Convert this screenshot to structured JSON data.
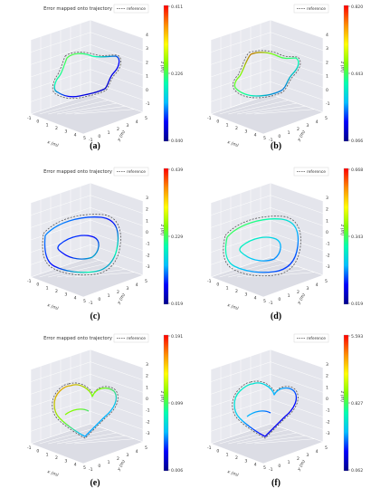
{
  "figure": {
    "panels": [
      {
        "caption": "(a)",
        "title": "Error mapped onto trajectory",
        "legend": "reference",
        "colorbar": {
          "max": "0.411",
          "mid": "0.226",
          "min": "0.040"
        },
        "x_ticks": [
          "-1",
          "0",
          "1",
          "2",
          "3",
          "4",
          "5"
        ],
        "y_ticks": [
          "-1",
          "0",
          "1",
          "2",
          "3",
          "4",
          "5"
        ],
        "z_ticks": [
          "-1",
          "0",
          "1",
          "2",
          "3",
          "4"
        ]
      },
      {
        "caption": "(b)",
        "title": "",
        "legend": "reference",
        "colorbar": {
          "max": "0.820",
          "mid": "0.443",
          "min": "0.066"
        },
        "x_ticks": [
          "-1",
          "0",
          "1",
          "2",
          "3",
          "4",
          "5"
        ],
        "y_ticks": [
          "-1",
          "0",
          "1",
          "2",
          "3",
          "4",
          "5"
        ],
        "z_ticks": [
          "-1",
          "0",
          "1",
          "2",
          "3",
          "4"
        ]
      },
      {
        "caption": "(c)",
        "title": "Error mapped onto trajectory",
        "legend": "reference",
        "colorbar": {
          "max": "0.439",
          "mid": "0.229",
          "min": "0.019"
        },
        "x_ticks": [
          "-1",
          "0",
          "1",
          "2",
          "3",
          "4",
          "5"
        ],
        "y_ticks": [
          "-1",
          "0",
          "1",
          "2",
          "3",
          "4",
          "5"
        ],
        "z_ticks": [
          "-3",
          "-2",
          "-1",
          "0",
          "1",
          "2",
          "3"
        ]
      },
      {
        "caption": "(d)",
        "title": "",
        "legend": "reference",
        "colorbar": {
          "max": "0.668",
          "mid": "0.343",
          "min": "0.019"
        },
        "x_ticks": [
          "-1",
          "0",
          "1",
          "2",
          "3",
          "4",
          "5"
        ],
        "y_ticks": [
          "-1",
          "0",
          "1",
          "2",
          "3",
          "4",
          "5"
        ],
        "z_ticks": [
          "-3",
          "-2",
          "-1",
          "0",
          "1",
          "2",
          "3"
        ]
      },
      {
        "caption": "(e)",
        "title": "Error mapped onto trajectory",
        "legend": "reference",
        "colorbar": {
          "max": "0.191",
          "mid": "0.099",
          "min": "0.006"
        },
        "x_ticks": [
          "-1",
          "0",
          "1",
          "2",
          "3",
          "4",
          "5"
        ],
        "y_ticks": [
          "-1",
          "0",
          "1",
          "2",
          "3",
          "4",
          "5"
        ],
        "z_ticks": [
          "-3",
          "-2",
          "-1",
          "0",
          "1",
          "2",
          "3"
        ]
      },
      {
        "caption": "(f)",
        "title": "",
        "legend": "reference",
        "colorbar": {
          "max": "5.593",
          "mid": "0.827",
          "min": "0.062"
        },
        "x_ticks": [
          "-1",
          "0",
          "1",
          "2",
          "3",
          "4",
          "5"
        ],
        "y_ticks": [
          "-1",
          "0",
          "1",
          "2",
          "3",
          "4",
          "5"
        ],
        "z_ticks": [
          "-3",
          "-2",
          "-1",
          "0",
          "1",
          "2",
          "3"
        ]
      }
    ],
    "axis_labels": {
      "x": "x (m)",
      "y": "y (m)",
      "z": "z (m)"
    },
    "colormap": [
      "#00008b",
      "#0000ff",
      "#00bfff",
      "#00ffb0",
      "#7fff00",
      "#ffff00",
      "#ff8c00",
      "#ff0000"
    ],
    "reference_color": "#555555"
  },
  "chart_data": [
    {
      "type": "line",
      "panel": "(a)",
      "title": "Error mapped onto trajectory",
      "series": [
        {
          "name": "reference"
        }
      ],
      "color_range": [
        0.04,
        0.411
      ],
      "colorbar_ticks": [
        0.04,
        0.226,
        0.411
      ],
      "xlabel": "x (m)",
      "ylabel": "y (m)",
      "zlabel": "z (m)",
      "grid": true,
      "legend": "top-right"
    },
    {
      "type": "line",
      "panel": "(b)",
      "series": [
        {
          "name": "reference"
        }
      ],
      "color_range": [
        0.066,
        0.82
      ],
      "colorbar_ticks": [
        0.066,
        0.443,
        0.82
      ],
      "xlabel": "x (m)",
      "ylabel": "y (m)",
      "zlabel": "z (m)",
      "grid": true,
      "legend": "top-right"
    },
    {
      "type": "line",
      "panel": "(c)",
      "title": "Error mapped onto trajectory",
      "series": [
        {
          "name": "reference"
        }
      ],
      "color_range": [
        0.019,
        0.439
      ],
      "colorbar_ticks": [
        0.019,
        0.229,
        0.439
      ],
      "xlabel": "x (m)",
      "ylabel": "y (m)",
      "zlabel": "z (m)",
      "grid": true,
      "legend": "top-right"
    },
    {
      "type": "line",
      "panel": "(d)",
      "series": [
        {
          "name": "reference"
        }
      ],
      "color_range": [
        0.019,
        0.668
      ],
      "colorbar_ticks": [
        0.019,
        0.343,
        0.668
      ],
      "xlabel": "x (m)",
      "ylabel": "y (m)",
      "zlabel": "z (m)",
      "grid": true,
      "legend": "top-right"
    },
    {
      "type": "line",
      "panel": "(e)",
      "title": "Error mapped onto trajectory",
      "series": [
        {
          "name": "reference"
        }
      ],
      "color_range": [
        0.006,
        0.191
      ],
      "colorbar_ticks": [
        0.006,
        0.099,
        0.191
      ],
      "xlabel": "x (m)",
      "ylabel": "y (m)",
      "zlabel": "z (m)",
      "grid": true,
      "legend": "top-right"
    },
    {
      "type": "line",
      "panel": "(f)",
      "series": [
        {
          "name": "reference"
        }
      ],
      "color_range": [
        0.062,
        5.593
      ],
      "colorbar_ticks": [
        0.062,
        0.827,
        5.593
      ],
      "xlabel": "x (m)",
      "ylabel": "y (m)",
      "zlabel": "z (m)",
      "grid": true,
      "legend": "top-right"
    }
  ]
}
